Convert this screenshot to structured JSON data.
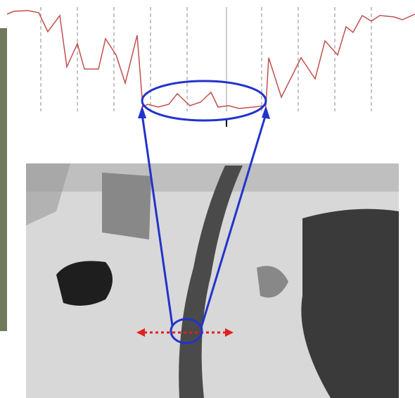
{
  "chart_data": {
    "type": "line",
    "x": [
      10,
      20,
      40,
      55,
      68,
      85,
      95,
      110,
      120,
      140,
      150,
      165,
      178,
      195,
      203,
      210,
      225,
      240,
      252,
      270,
      285,
      300,
      310,
      325,
      340,
      360,
      378,
      382,
      400,
      428,
      448,
      462,
      480,
      492,
      502,
      515,
      528,
      540,
      560,
      572,
      590
    ],
    "series": [
      {
        "color": "#c0504d",
        "values": [
          140,
          144,
          145,
          142,
          115,
          138,
          65,
          98,
          62,
          62,
          105,
          82,
          42,
          110,
          8,
          12,
          8,
          12,
          27,
          10,
          15,
          29,
          8,
          10,
          6,
          8,
          10,
          78,
          22,
          78,
          48,
          102,
          82,
          122,
          114,
          138,
          130,
          138,
          136,
          132,
          140
        ]
      }
    ],
    "xlim": [
      10,
      590
    ],
    "ylim": [
      0,
      160
    ]
  }
}
